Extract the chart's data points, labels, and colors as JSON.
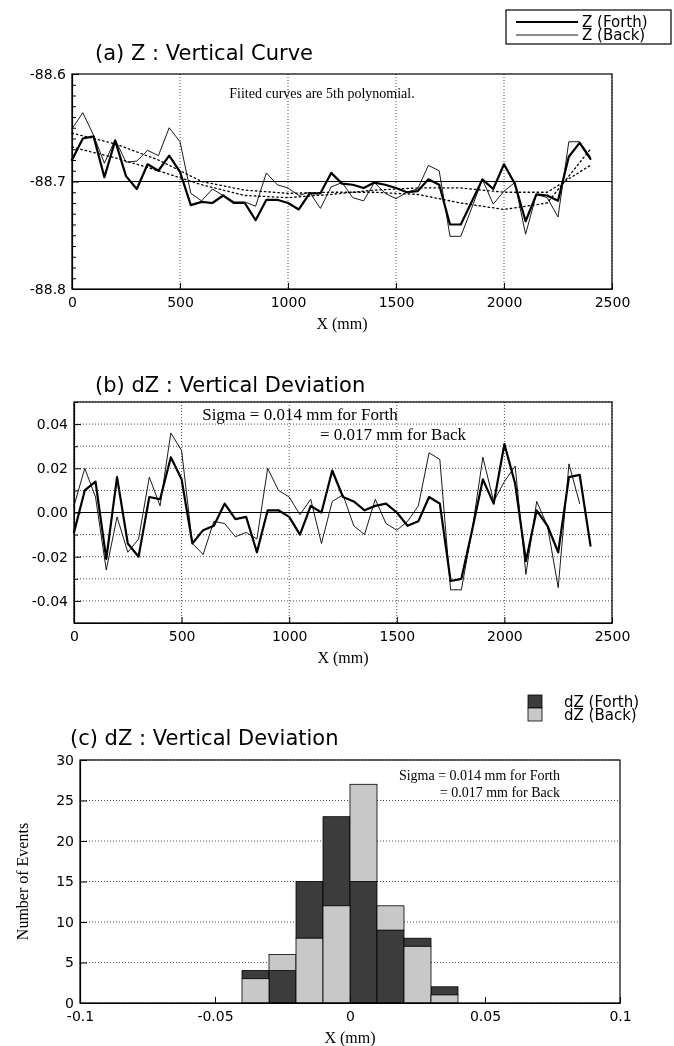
{
  "chart_data": [
    {
      "type": "line",
      "title": "(a)  Z : Vertical Curve",
      "xlabel": "X (mm)",
      "annotations": [
        "Fiited curves are 5th polynomial."
      ],
      "x": [
        0,
        50,
        100,
        150,
        200,
        250,
        300,
        350,
        400,
        450,
        500,
        550,
        600,
        650,
        700,
        750,
        800,
        850,
        900,
        950,
        1000,
        1050,
        1100,
        1150,
        1200,
        1250,
        1300,
        1350,
        1400,
        1450,
        1500,
        1550,
        1600,
        1650,
        1700,
        1750,
        1800,
        1850,
        1900,
        1950,
        2000,
        2050,
        2100,
        2150,
        2200,
        2250,
        2300,
        2350,
        2400
      ],
      "series": [
        {
          "name": "Z (Forth)",
          "color": "#000000",
          "values": [
            -88.68,
            -88.66,
            -88.658,
            -88.696,
            -88.662,
            -88.695,
            -88.707,
            -88.684,
            -88.69,
            -88.676,
            -88.691,
            -88.722,
            -88.719,
            -88.72,
            -88.713,
            -88.72,
            -88.72,
            -88.736,
            -88.717,
            -88.717,
            -88.72,
            -88.726,
            -88.711,
            -88.711,
            -88.692,
            -88.702,
            -88.703,
            -88.706,
            -88.701,
            -88.703,
            -88.706,
            -88.71,
            -88.709,
            -88.698,
            -88.703,
            -88.74,
            -88.74,
            -88.719,
            -88.698,
            -88.707,
            -88.684,
            -88.702,
            -88.737,
            -88.712,
            -88.713,
            -88.718,
            -88.677,
            -88.664,
            -88.679
          ]
        },
        {
          "name": "Z (Back)",
          "color": "#000000",
          "values": [
            -88.651,
            -88.636,
            -88.657,
            -88.683,
            -88.661,
            -88.682,
            -88.681,
            -88.671,
            -88.676,
            -88.65,
            -88.663,
            -88.711,
            -88.718,
            -88.707,
            -88.713,
            -88.719,
            -88.719,
            -88.723,
            -88.692,
            -88.703,
            -88.706,
            -88.713,
            -88.71,
            -88.725,
            -88.705,
            -88.701,
            -88.715,
            -88.718,
            -88.701,
            -88.711,
            -88.716,
            -88.71,
            -88.707,
            -88.685,
            -88.69,
            -88.751,
            -88.751,
            -88.725,
            -88.698,
            -88.721,
            -88.709,
            -88.701,
            -88.749,
            -88.712,
            -88.715,
            -88.733,
            -88.663,
            -88.663,
            -88.677
          ]
        },
        {
          "type": "line",
          "line_style": "dotted",
          "color": "#000000",
          "x": [
            0,
            200,
            400,
            600,
            800,
            1000,
            1200,
            1400,
            1600,
            1800,
            2000,
            2200,
            2400
          ],
          "values": [
            -88.655,
            -88.665,
            -88.68,
            -88.7,
            -88.708,
            -88.711,
            -88.71,
            -88.71,
            -88.712,
            -88.72,
            -88.726,
            -88.72,
            -88.67
          ]
        },
        {
          "type": "line",
          "line_style": "dotted",
          "color": "#000000",
          "x": [
            0,
            200,
            400,
            600,
            800,
            1000,
            1200,
            1400,
            1600,
            1800,
            2000,
            2200,
            2400
          ],
          "values": [
            -88.668,
            -88.678,
            -88.69,
            -88.703,
            -88.713,
            -88.715,
            -88.712,
            -88.708,
            -88.706,
            -88.706,
            -88.71,
            -88.71,
            -88.685
          ]
        }
      ],
      "xlim": [
        0,
        2500
      ],
      "xticks": [
        0,
        500,
        1000,
        1500,
        2000,
        2500
      ],
      "ylim": [
        -88.8,
        -88.6
      ],
      "yticks": [
        -88.8,
        {
          "value": -88.79,
          "label": null
        },
        {
          "value": -88.78,
          "label": null
        },
        {
          "value": -88.77,
          "label": null
        },
        {
          "value": -88.76,
          "label": null
        },
        {
          "value": -88.75,
          "label": null
        },
        {
          "value": -88.74,
          "label": null
        },
        {
          "value": -88.73,
          "label": null
        },
        {
          "value": -88.72,
          "label": null
        },
        {
          "value": -88.71,
          "label": null
        },
        -88.7,
        {
          "value": -88.69,
          "label": null
        },
        {
          "value": -88.68,
          "label": null
        },
        {
          "value": -88.67,
          "label": null
        },
        {
          "value": -88.66,
          "label": null
        },
        {
          "value": -88.65,
          "label": null
        },
        {
          "value": -88.64,
          "label": null
        },
        {
          "value": -88.63,
          "label": null
        },
        {
          "value": -88.62,
          "label": null
        },
        {
          "value": -88.61,
          "label": null
        },
        -88.6
      ],
      "ref_lines": [
        {
          "axis": "y",
          "value": -88.7,
          "color": "#000000",
          "line_style": "solid"
        }
      ],
      "grid": "x",
      "legend": "top right",
      "line_style": "solid"
    },
    {
      "type": "line",
      "title": "(b)  dZ : Vertical Deviation",
      "xlabel": "X (mm)",
      "annotations": [
        "Sigma = 0.014 mm for Forth",
        "= 0.017 mm for Back"
      ],
      "x": [
        0,
        50,
        100,
        150,
        200,
        250,
        300,
        350,
        400,
        450,
        500,
        550,
        600,
        650,
        700,
        750,
        800,
        850,
        900,
        950,
        1000,
        1050,
        1100,
        1150,
        1200,
        1250,
        1300,
        1350,
        1400,
        1450,
        1500,
        1550,
        1600,
        1650,
        1700,
        1750,
        1800,
        1850,
        1900,
        1950,
        2000,
        2050,
        2100,
        2150,
        2200,
        2250,
        2300,
        2350,
        2400
      ],
      "series": [
        {
          "color": "#000000",
          "values": [
            -0.009,
            0.01,
            0.014,
            -0.021,
            0.016,
            -0.014,
            -0.02,
            0.007,
            0.006,
            0.025,
            0.015,
            -0.014,
            -0.008,
            -0.006,
            0.004,
            -0.003,
            -0.002,
            -0.018,
            0.001,
            0.001,
            -0.002,
            -0.01,
            0.003,
            0.0,
            0.019,
            0.007,
            0.005,
            0.001,
            0.003,
            0.004,
            0.0,
            -0.006,
            -0.004,
            0.007,
            0.004,
            -0.031,
            -0.03,
            -0.008,
            0.015,
            0.004,
            0.031,
            0.013,
            -0.022,
            0.001,
            -0.006,
            -0.018,
            0.016,
            0.017,
            -0.015
          ]
        },
        {
          "color": "#000000",
          "values": [
            0.003,
            0.02,
            0.007,
            -0.026,
            -0.002,
            -0.018,
            -0.012,
            0.016,
            0.003,
            0.036,
            0.028,
            -0.014,
            -0.019,
            -0.004,
            -0.005,
            -0.011,
            -0.009,
            -0.012,
            0.02,
            0.01,
            0.007,
            -0.001,
            0.006,
            -0.014,
            0.005,
            0.008,
            -0.006,
            -0.01,
            0.006,
            -0.005,
            -0.008,
            -0.004,
            0.003,
            0.027,
            0.024,
            -0.035,
            -0.035,
            -0.008,
            0.025,
            0.005,
            0.014,
            0.021,
            -0.028,
            0.005,
            -0.006,
            -0.034,
            0.022,
            0.004,
            null
          ]
        }
      ],
      "xlim": [
        0,
        2500
      ],
      "xticks": [
        0,
        500,
        1000,
        1500,
        2000,
        2500
      ],
      "ylim": [
        -0.05,
        0.05
      ],
      "yticks": [
        {
          "value": -0.05,
          "label": null
        },
        -0.04,
        {
          "value": -0.03,
          "label": null
        },
        -0.02,
        {
          "value": -0.01,
          "label": null
        },
        {
          "value": 0,
          "label": "0.00"
        },
        {
          "value": 0.01,
          "label": null
        },
        0.02,
        {
          "value": 0.03,
          "label": null
        },
        0.04,
        {
          "value": 0.05,
          "label": null
        }
      ],
      "ref_lines": [
        {
          "axis": "y",
          "value": 0,
          "color": "#000000",
          "line_style": "solid"
        }
      ],
      "grid": true,
      "line_style": "solid"
    },
    {
      "type": "histogram",
      "title": "(c)  dZ : Vertical Deviation",
      "xlabel": "X (mm)",
      "ylabel": "Number of Events",
      "annotations": [
        "Sigma = 0.014 mm for Forth",
        "= 0.017 mm for Back"
      ],
      "bins": [
        -0.04,
        -0.03,
        -0.02,
        -0.01,
        0,
        0.01,
        0.02,
        0.03,
        0.04
      ],
      "series": [
        {
          "name": "dZ (Forth)",
          "color": "#3c3c3c",
          "values": [
            1,
            4,
            7,
            11,
            15,
            9,
            1,
            1
          ],
          "base": [
            3,
            0,
            8,
            12,
            0,
            0,
            7,
            1
          ]
        },
        {
          "name": "dZ (Back)",
          "color": "#c8c8c8",
          "values": [
            3,
            2,
            8,
            12,
            12,
            3,
            7,
            1
          ],
          "base": [
            0,
            4,
            0,
            0,
            15,
            9,
            0,
            0
          ]
        }
      ],
      "xlim": [
        -0.1,
        0.1
      ],
      "xticks": [
        -0.1,
        -0.05,
        0,
        0.05,
        0.1
      ],
      "ylim": [
        0,
        30
      ],
      "yticks": [
        0,
        5,
        10,
        15,
        20,
        25,
        30
      ],
      "grid": "y",
      "legend": "top right"
    }
  ]
}
